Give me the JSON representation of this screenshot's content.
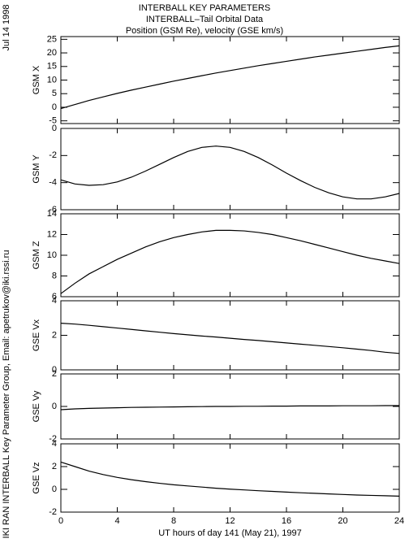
{
  "header": {
    "lines": [
      "INTERBALL KEY PARAMETERS",
      "INTERBALL–Tail Orbital Data",
      "Position (GSM Re), velocity (GSE km/s)"
    ]
  },
  "side": {
    "date": "Jul 14 1998",
    "credit": "IKI RAN INTERBALL Key Parameter Group, Email: apetrukov@iki.rssi.ru"
  },
  "chart_data": [
    {
      "type": "line",
      "ylabel": "GSM X",
      "xlim": [
        0,
        24
      ],
      "xticks": [
        0,
        4,
        8,
        12,
        16,
        20,
        24
      ],
      "ylim": [
        -6,
        26
      ],
      "yticks": [
        -5,
        0,
        5,
        10,
        15,
        20,
        25
      ],
      "x": [
        0,
        1,
        2,
        3,
        4,
        5,
        6,
        7,
        8,
        9,
        10,
        11,
        12,
        13,
        14,
        15,
        16,
        17,
        18,
        19,
        20,
        21,
        22,
        23,
        24
      ],
      "values": [
        -0.5,
        1,
        2.5,
        3.8,
        5.1,
        6.3,
        7.4,
        8.5,
        9.6,
        10.6,
        11.6,
        12.6,
        13.5,
        14.4,
        15.3,
        16.1,
        16.9,
        17.7,
        18.5,
        19.2,
        19.9,
        20.6,
        21.3,
        22,
        22.6
      ]
    },
    {
      "type": "line",
      "ylabel": "GSM Y",
      "xlim": [
        0,
        24
      ],
      "xticks": [
        0,
        4,
        8,
        12,
        16,
        20,
        24
      ],
      "ylim": [
        -6,
        0
      ],
      "yticks": [
        -6,
        -4,
        -2,
        0
      ],
      "x": [
        0,
        1,
        2,
        3,
        4,
        5,
        6,
        7,
        8,
        9,
        10,
        11,
        12,
        13,
        14,
        15,
        16,
        17,
        18,
        19,
        20,
        21,
        22,
        23,
        24
      ],
      "values": [
        -3.8,
        -4.1,
        -4.2,
        -4.15,
        -3.95,
        -3.6,
        -3.15,
        -2.65,
        -2.15,
        -1.7,
        -1.4,
        -1.3,
        -1.4,
        -1.7,
        -2.15,
        -2.7,
        -3.3,
        -3.85,
        -4.35,
        -4.75,
        -5.05,
        -5.2,
        -5.2,
        -5.05,
        -4.8
      ]
    },
    {
      "type": "line",
      "ylabel": "GSM Z",
      "xlim": [
        0,
        24
      ],
      "xticks": [
        0,
        4,
        8,
        12,
        16,
        20,
        24
      ],
      "ylim": [
        6,
        14
      ],
      "yticks": [
        6,
        8,
        10,
        12,
        14
      ],
      "x": [
        0,
        1,
        2,
        3,
        4,
        5,
        6,
        7,
        8,
        9,
        10,
        11,
        12,
        13,
        14,
        15,
        16,
        17,
        18,
        19,
        20,
        21,
        22,
        23,
        24
      ],
      "values": [
        6.3,
        7.3,
        8.2,
        8.9,
        9.6,
        10.2,
        10.8,
        11.3,
        11.7,
        12,
        12.25,
        12.4,
        12.4,
        12.35,
        12.2,
        12,
        11.7,
        11.4,
        11.05,
        10.7,
        10.35,
        10,
        9.7,
        9.45,
        9.2
      ]
    },
    {
      "type": "line",
      "ylabel": "GSE Vx",
      "xlim": [
        0,
        24
      ],
      "xticks": [
        0,
        4,
        8,
        12,
        16,
        20,
        24
      ],
      "ylim": [
        0,
        4
      ],
      "yticks": [
        0,
        2,
        4
      ],
      "x": [
        0,
        1,
        2,
        3,
        4,
        5,
        6,
        7,
        8,
        9,
        10,
        11,
        12,
        13,
        14,
        15,
        16,
        17,
        18,
        19,
        20,
        21,
        22,
        23,
        24
      ],
      "values": [
        2.7,
        2.65,
        2.58,
        2.5,
        2.42,
        2.34,
        2.26,
        2.18,
        2.1,
        2.03,
        1.96,
        1.9,
        1.83,
        1.76,
        1.7,
        1.63,
        1.56,
        1.49,
        1.42,
        1.35,
        1.28,
        1.2,
        1.12,
        1.02,
        0.95
      ]
    },
    {
      "type": "line",
      "ylabel": "GSE Vy",
      "xlim": [
        0,
        24
      ],
      "xticks": [
        0,
        4,
        8,
        12,
        16,
        20,
        24
      ],
      "ylim": [
        -2,
        2
      ],
      "yticks": [
        -2,
        0,
        2
      ],
      "x": [
        0,
        1,
        2,
        3,
        4,
        5,
        6,
        7,
        8,
        9,
        10,
        11,
        12,
        13,
        14,
        15,
        16,
        17,
        18,
        19,
        20,
        21,
        22,
        23,
        24
      ],
      "values": [
        -0.2,
        -0.15,
        -0.12,
        -0.1,
        -0.08,
        -0.06,
        -0.05,
        -0.04,
        -0.03,
        -0.02,
        -0.01,
        0,
        0,
        0.01,
        0.01,
        0.02,
        0.02,
        0.03,
        0.03,
        0.03,
        0.04,
        0.04,
        0.04,
        0.05,
        0.05
      ]
    },
    {
      "type": "line",
      "ylabel": "GSE Vz",
      "xlabel": "UT hours of day 141 (May 21), 1997",
      "xlim": [
        0,
        24
      ],
      "xticks": [
        0,
        4,
        8,
        12,
        16,
        20,
        24
      ],
      "ylim": [
        -2,
        4
      ],
      "yticks": [
        -2,
        0,
        2,
        4
      ],
      "x": [
        0,
        1,
        2,
        3,
        4,
        5,
        6,
        7,
        8,
        9,
        10,
        11,
        12,
        13,
        14,
        15,
        16,
        17,
        18,
        19,
        20,
        21,
        22,
        23,
        24
      ],
      "values": [
        2.4,
        2.0,
        1.6,
        1.3,
        1.05,
        0.85,
        0.68,
        0.53,
        0.4,
        0.3,
        0.2,
        0.1,
        0.02,
        -0.05,
        -0.12,
        -0.18,
        -0.24,
        -0.3,
        -0.35,
        -0.4,
        -0.45,
        -0.5,
        -0.53,
        -0.56,
        -0.6
      ]
    }
  ]
}
